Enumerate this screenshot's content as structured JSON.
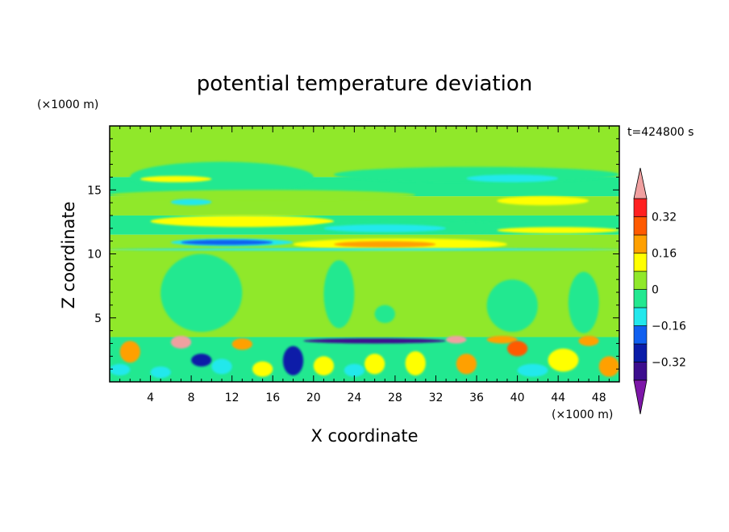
{
  "chart_data": {
    "type": "heatmap",
    "title": "potential temperature deviation",
    "xlabel": "X coordinate",
    "ylabel": "Z coordinate",
    "x_unit": "(×1000 m)",
    "y_unit": "(×1000 m)",
    "time_label": "t=424800 s",
    "xlim": [
      0,
      50
    ],
    "ylim": [
      0,
      20
    ],
    "x_ticks": [
      4,
      8,
      12,
      16,
      20,
      24,
      28,
      32,
      36,
      40,
      44,
      48
    ],
    "y_ticks": [
      5,
      10,
      15
    ],
    "colorbar": {
      "levels": [
        -0.4,
        -0.32,
        -0.24,
        -0.16,
        -0.08,
        0,
        0.08,
        0.16,
        0.24,
        0.32,
        0.4
      ],
      "labels": [
        "0.32",
        "0.16",
        "0",
        "−0.16",
        "−0.32"
      ],
      "label_values": [
        0.32,
        0.16,
        0,
        -0.16,
        -0.32
      ],
      "colors": [
        "#7d16a8",
        "#3c0e8e",
        "#0a1ca8",
        "#1060f0",
        "#22e8ec",
        "#22e890",
        "#90e82a",
        "#ffff00",
        "#ffa000",
        "#ff5a00",
        "#ff2020",
        "#f0a0a0"
      ]
    },
    "bands": [
      {
        "z0": 16,
        "z1": 20,
        "value": 0.04
      },
      {
        "z0": 14.5,
        "z1": 16,
        "value": -0.02
      },
      {
        "z0": 13,
        "z1": 14.5,
        "value": 0.04
      },
      {
        "z0": 11.5,
        "z1": 13,
        "value": -0.02
      },
      {
        "z0": 10.3,
        "z1": 11.5,
        "value": 0.04
      },
      {
        "z0": 3.5,
        "z1": 10.3,
        "value": 0.04
      },
      {
        "z0": 0,
        "z1": 3.5,
        "value": -0.02
      }
    ],
    "features": [
      {
        "x0": 2,
        "x1": 20,
        "z0": 14.8,
        "z1": 17.2,
        "value": -0.02
      },
      {
        "x0": 22,
        "x1": 50,
        "z0": 15.6,
        "z1": 16.8,
        "value": -0.02
      },
      {
        "x0": 3,
        "x1": 10,
        "z0": 15.6,
        "z1": 16.1,
        "value": 0.12
      },
      {
        "x0": 35,
        "x1": 44,
        "z0": 15.6,
        "z1": 16.2,
        "value": -0.12
      },
      {
        "x0": 0,
        "x1": 30,
        "z0": 14.2,
        "z1": 15.0,
        "value": 0.04
      },
      {
        "x0": 6,
        "x1": 10,
        "z0": 13.8,
        "z1": 14.3,
        "value": -0.12
      },
      {
        "x0": 38,
        "x1": 47,
        "z0": 13.8,
        "z1": 14.5,
        "value": 0.12
      },
      {
        "x0": 4,
        "x1": 22,
        "z0": 12.1,
        "z1": 13.0,
        "value": 0.12
      },
      {
        "x0": 20,
        "x1": 40,
        "z0": 11.6,
        "z1": 12.6,
        "value": -0.02
      },
      {
        "x0": 21,
        "x1": 33,
        "z0": 11.7,
        "z1": 12.3,
        "value": -0.12
      },
      {
        "x0": 38,
        "x1": 50,
        "z0": 11.6,
        "z1": 12.1,
        "value": 0.12
      },
      {
        "x0": 6,
        "x1": 18,
        "z0": 10.6,
        "z1": 11.2,
        "value": -0.12
      },
      {
        "x0": 7,
        "x1": 16,
        "z0": 10.7,
        "z1": 11.1,
        "value": -0.2
      },
      {
        "x0": 18,
        "x1": 39,
        "z0": 10.3,
        "z1": 11.2,
        "value": 0.12
      },
      {
        "x0": 22,
        "x1": 32,
        "z0": 10.5,
        "z1": 11.0,
        "value": 0.2
      },
      {
        "x0": 0,
        "x1": 50,
        "z0": 10.25,
        "z1": 10.45,
        "value": -0.12
      },
      {
        "x0": 5,
        "x1": 13,
        "z0": 3.9,
        "z1": 10.0,
        "value": -0.02
      },
      {
        "x0": 21,
        "x1": 24,
        "z0": 4.2,
        "z1": 9.5,
        "value": -0.02
      },
      {
        "x0": 26,
        "x1": 28,
        "z0": 4.6,
        "z1": 6.0,
        "value": -0.02
      },
      {
        "x0": 37,
        "x1": 42,
        "z0": 3.9,
        "z1": 8.0,
        "value": -0.02
      },
      {
        "x0": 45,
        "x1": 48,
        "z0": 3.8,
        "z1": 8.6,
        "value": -0.02
      },
      {
        "x0": 19,
        "x1": 33,
        "z0": 3.0,
        "z1": 3.4,
        "value": -0.36
      },
      {
        "x0": 8,
        "x1": 10,
        "z0": 1.2,
        "z1": 2.2,
        "value": -0.28
      },
      {
        "x0": 17,
        "x1": 19,
        "z0": 0.5,
        "z1": 2.8,
        "value": -0.28
      },
      {
        "x0": 1,
        "x1": 3,
        "z0": 1.5,
        "z1": 3.2,
        "value": 0.2
      },
      {
        "x0": 6,
        "x1": 8,
        "z0": 2.6,
        "z1": 3.6,
        "value": 0.44
      },
      {
        "x0": 12,
        "x1": 14,
        "z0": 2.5,
        "z1": 3.4,
        "value": 0.2
      },
      {
        "x0": 14,
        "x1": 16,
        "z0": 0.4,
        "z1": 1.6,
        "value": 0.12
      },
      {
        "x0": 20,
        "x1": 22,
        "z0": 0.5,
        "z1": 2.0,
        "value": 0.12
      },
      {
        "x0": 25,
        "x1": 27,
        "z0": 0.6,
        "z1": 2.2,
        "value": 0.12
      },
      {
        "x0": 29,
        "x1": 31,
        "z0": 0.5,
        "z1": 2.4,
        "value": 0.12
      },
      {
        "x0": 33,
        "x1": 35,
        "z0": 3.0,
        "z1": 3.6,
        "value": 0.44
      },
      {
        "x0": 34,
        "x1": 36,
        "z0": 0.6,
        "z1": 2.2,
        "value": 0.2
      },
      {
        "x0": 37,
        "x1": 40,
        "z0": 3.0,
        "z1": 3.6,
        "value": 0.2
      },
      {
        "x0": 39,
        "x1": 41,
        "z0": 2.0,
        "z1": 3.2,
        "value": 0.28
      },
      {
        "x0": 43,
        "x1": 46,
        "z0": 0.8,
        "z1": 2.6,
        "value": 0.12
      },
      {
        "x0": 46,
        "x1": 48,
        "z0": 2.8,
        "z1": 3.6,
        "value": 0.2
      },
      {
        "x0": 48,
        "x1": 50,
        "z0": 0.4,
        "z1": 2.0,
        "value": 0.2
      },
      {
        "x0": 4,
        "x1": 6,
        "z0": 0.3,
        "z1": 1.2,
        "value": -0.12
      },
      {
        "x0": 10,
        "x1": 12,
        "z0": 0.6,
        "z1": 1.8,
        "value": -0.12
      },
      {
        "x0": 23,
        "x1": 25,
        "z0": 0.4,
        "z1": 1.4,
        "value": -0.12
      },
      {
        "x0": 40,
        "x1": 43,
        "z0": 0.4,
        "z1": 1.4,
        "value": -0.12
      },
      {
        "x0": 0,
        "x1": 2,
        "z0": 0.5,
        "z1": 1.4,
        "value": -0.12
      }
    ]
  }
}
